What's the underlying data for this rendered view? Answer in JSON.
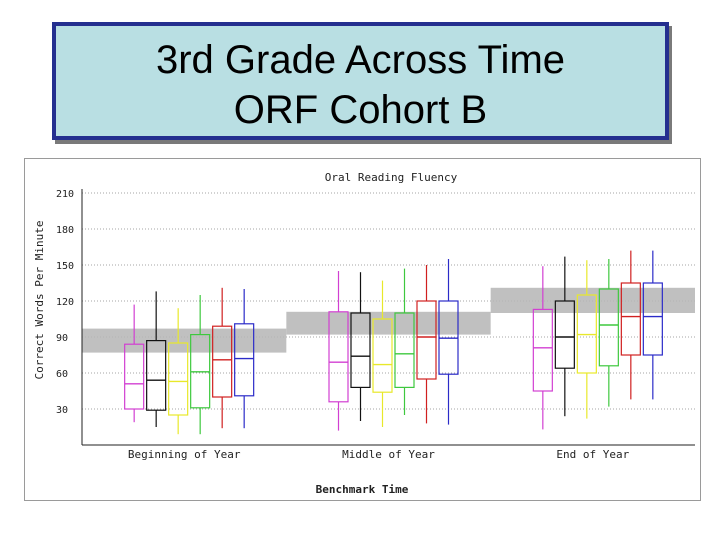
{
  "slide": {
    "title_line1": "3rd Grade Across Time",
    "title_line2": "ORF Cohort B"
  },
  "chart_data": {
    "type": "boxplot",
    "title": "Oral Reading Fluency",
    "xlabel": "Benchmark Time",
    "ylabel": "Correct Words Per Minute",
    "ylim": [
      0,
      210
    ],
    "yticks": [
      30,
      60,
      90,
      120,
      150,
      180,
      210
    ],
    "categories": [
      "Beginning of Year",
      "Middle of Year",
      "End of Year"
    ],
    "series_colors": [
      "#d23fd2",
      "#111111",
      "#e8e82a",
      "#3ec83e",
      "#d02020",
      "#2b2bc8"
    ],
    "benchmark_bands": [
      {
        "category": "Beginning of Year",
        "low": 77,
        "high": 97
      },
      {
        "category": "Middle of Year",
        "low": 92,
        "high": 111
      },
      {
        "category": "End of Year",
        "low": 110,
        "high": 131
      }
    ],
    "groups": [
      {
        "category": "Beginning of Year",
        "boxes": [
          {
            "whisker_low": 19,
            "q1": 30,
            "median": 51,
            "q3": 84,
            "whisker_high": 117
          },
          {
            "whisker_low": 15,
            "q1": 29,
            "median": 54,
            "q3": 87,
            "whisker_high": 128
          },
          {
            "whisker_low": 9,
            "q1": 25,
            "median": 53,
            "q3": 85,
            "whisker_high": 114
          },
          {
            "whisker_low": 9,
            "q1": 31,
            "median": 61,
            "q3": 92,
            "whisker_high": 125
          },
          {
            "whisker_low": 14,
            "q1": 40,
            "median": 71,
            "q3": 99,
            "whisker_high": 131
          },
          {
            "whisker_low": 14,
            "q1": 41,
            "median": 72,
            "q3": 101,
            "whisker_high": 130
          }
        ]
      },
      {
        "category": "Middle of Year",
        "boxes": [
          {
            "whisker_low": 12,
            "q1": 36,
            "median": 69,
            "q3": 111,
            "whisker_high": 145
          },
          {
            "whisker_low": 20,
            "q1": 48,
            "median": 74,
            "q3": 110,
            "whisker_high": 144
          },
          {
            "whisker_low": 15,
            "q1": 44,
            "median": 67,
            "q3": 105,
            "whisker_high": 137
          },
          {
            "whisker_low": 25,
            "q1": 48,
            "median": 76,
            "q3": 110,
            "whisker_high": 147
          },
          {
            "whisker_low": 18,
            "q1": 55,
            "median": 90,
            "q3": 120,
            "whisker_high": 150
          },
          {
            "whisker_low": 17,
            "q1": 59,
            "median": 89,
            "q3": 120,
            "whisker_high": 155
          }
        ]
      },
      {
        "category": "End of Year",
        "boxes": [
          {
            "whisker_low": 13,
            "q1": 45,
            "median": 81,
            "q3": 113,
            "whisker_high": 149
          },
          {
            "whisker_low": 24,
            "q1": 64,
            "median": 90,
            "q3": 120,
            "whisker_high": 157
          },
          {
            "whisker_low": 22,
            "q1": 60,
            "median": 92,
            "q3": 125,
            "whisker_high": 154
          },
          {
            "whisker_low": 32,
            "q1": 66,
            "median": 100,
            "q3": 130,
            "whisker_high": 155
          },
          {
            "whisker_low": 38,
            "q1": 75,
            "median": 107,
            "q3": 135,
            "whisker_high": 162
          },
          {
            "whisker_low": 38,
            "q1": 75,
            "median": 107,
            "q3": 135,
            "whisker_high": 162
          }
        ]
      }
    ]
  }
}
